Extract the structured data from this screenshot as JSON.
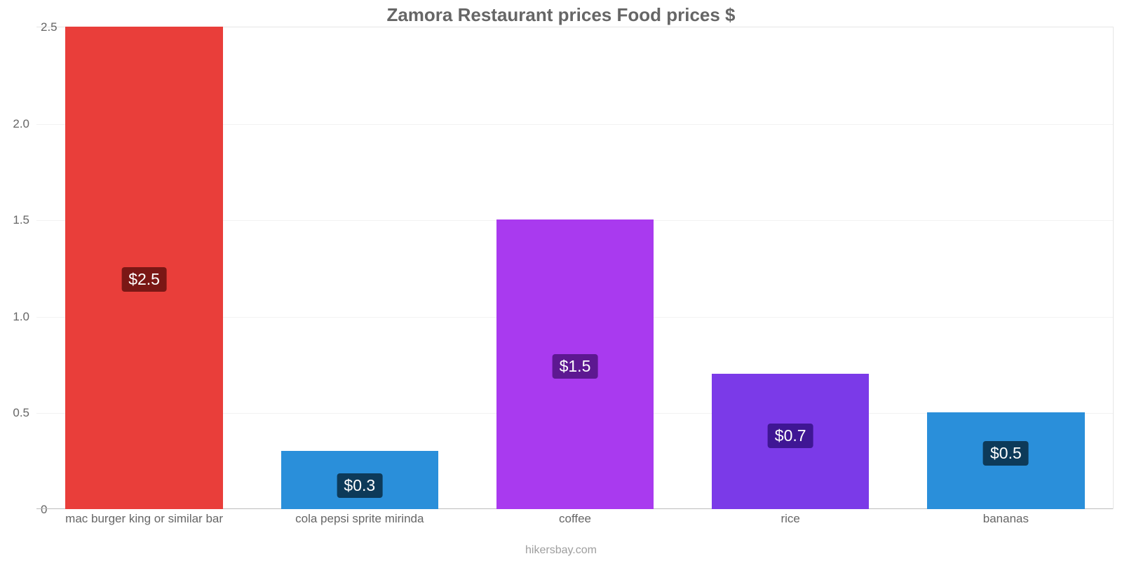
{
  "chart": {
    "type": "bar",
    "title": "Zamora Restaurant prices Food prices $",
    "title_fontsize": 26,
    "title_color": "#666666",
    "background_color": "#ffffff",
    "grid_color": "#f2f2f2",
    "plot_border_color": "#e6e6e6",
    "baseline_color": "#bdbdbd",
    "ylim": [
      0,
      2.5
    ],
    "yticks": [
      0,
      0.5,
      1.0,
      1.5,
      2.0,
      2.5
    ],
    "ytick_labels": [
      "0",
      "0.5",
      "1.0",
      "1.5",
      "2.0",
      "2.5"
    ],
    "ytick_fontsize": 17,
    "ytick_color": "#666666",
    "xlabel_fontsize": 17,
    "xlabel_color": "#666666",
    "bar_width_pct": 73,
    "value_label_fontsize": 23,
    "attribution": "hikersbay.com",
    "attribution_fontsize": 16,
    "attribution_color": "#9e9e9e",
    "categories": [
      "mac burger king or similar bar",
      "cola pepsi sprite mirinda",
      "coffee",
      "rice",
      "bananas"
    ],
    "values": [
      2.5,
      0.3,
      1.5,
      0.7,
      0.5
    ],
    "value_labels": [
      "$2.5",
      "$0.3",
      "$1.5",
      "$0.7",
      "$0.5"
    ],
    "bar_colors": [
      "#e93e3a",
      "#2a8fda",
      "#a93aef",
      "#7b3ae8",
      "#2a8fda"
    ],
    "badge_colors": [
      "#7a1715",
      "#0d3a59",
      "#5d1891",
      "#3f1694",
      "#0d3a59"
    ]
  }
}
